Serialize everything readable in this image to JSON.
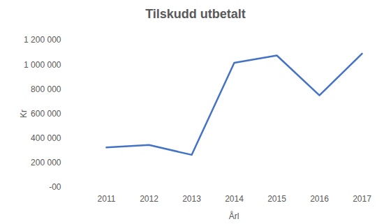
{
  "chart_data": {
    "type": "line",
    "title": "Tilskudd utbetalt",
    "x_label": "Årl",
    "y_label": "Kr",
    "categories": [
      "2011",
      "2012",
      "2013",
      "2014",
      "2015",
      "2016",
      "2017"
    ],
    "values": [
      325000,
      345000,
      265000,
      1015000,
      1075000,
      750000,
      1090000
    ],
    "color": "#4472c4",
    "ylim": [
      0,
      1200000
    ],
    "yticks": [
      {
        "value": 0,
        "label": "-00"
      },
      {
        "value": 200000,
        "label": "200 000"
      },
      {
        "value": 400000,
        "label": "400 000"
      },
      {
        "value": 600000,
        "label": "600 000"
      },
      {
        "value": 800000,
        "label": "800 000"
      },
      {
        "value": 1000000,
        "label": "1 000 000"
      },
      {
        "value": 1200000,
        "label": "1 200 000"
      }
    ],
    "grid": false
  }
}
